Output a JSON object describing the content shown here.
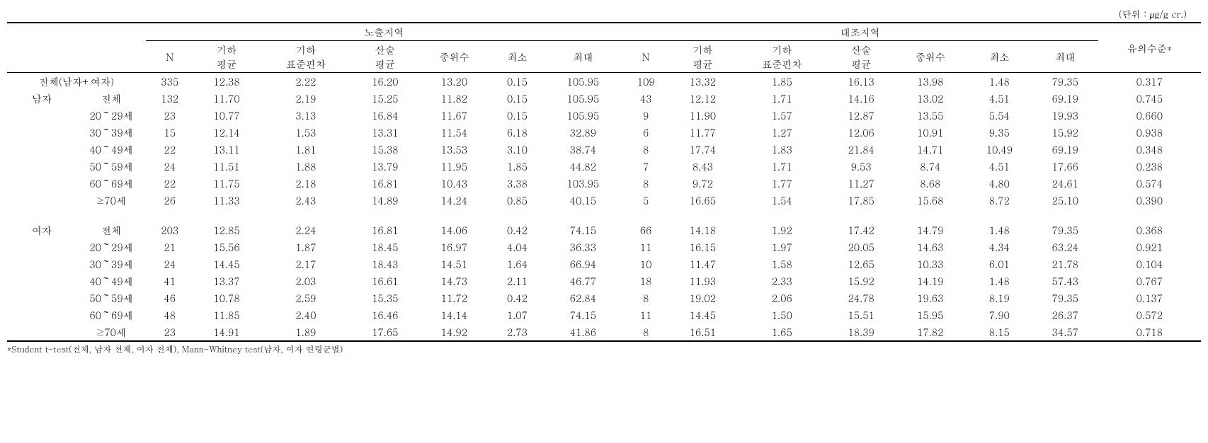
{
  "unit_label": "(단위 : ㎍/g cr.)",
  "headers": {
    "group1": "노출지역",
    "group2": "대조지역",
    "n": "N",
    "gmean": "기하\n평균",
    "gsd": "기하\n표준편차",
    "amean": "산술\n평균",
    "median": "중위수",
    "min": "최소",
    "max": "최대",
    "sig": "유의수준*"
  },
  "rows": [
    {
      "l1": "전체(남자+여자)",
      "l2": "",
      "g1": [
        "335",
        "12.38",
        "2.22",
        "16.20",
        "13.20",
        "0.15",
        "105.95"
      ],
      "g2": [
        "109",
        "13.32",
        "1.85",
        "16.13",
        "13.98",
        "1.48",
        "79.35"
      ],
      "sig": "0.317"
    },
    {
      "l1": "남자",
      "l2": "전체",
      "g1": [
        "132",
        "11.70",
        "2.19",
        "15.25",
        "11.82",
        "0.15",
        "105.95"
      ],
      "g2": [
        "43",
        "12.12",
        "1.71",
        "14.16",
        "13.02",
        "4.51",
        "69.19"
      ],
      "sig": "0.745"
    },
    {
      "l1": "",
      "l2": "20～29세",
      "g1": [
        "23",
        "10.77",
        "3.13",
        "16.84",
        "11.67",
        "0.15",
        "105.95"
      ],
      "g2": [
        "9",
        "11.90",
        "1.57",
        "12.87",
        "13.55",
        "5.54",
        "19.93"
      ],
      "sig": "0.660"
    },
    {
      "l1": "",
      "l2": "30～39세",
      "g1": [
        "15",
        "12.14",
        "1.53",
        "13.31",
        "11.54",
        "6.18",
        "32.89"
      ],
      "g2": [
        "6",
        "11.77",
        "1.27",
        "12.06",
        "10.91",
        "9.35",
        "15.92"
      ],
      "sig": "0.938"
    },
    {
      "l1": "",
      "l2": "40～49세",
      "g1": [
        "22",
        "13.11",
        "1.81",
        "15.38",
        "13.53",
        "3.10",
        "38.74"
      ],
      "g2": [
        "8",
        "17.74",
        "1.83",
        "21.84",
        "14.71",
        "10.49",
        "69.19"
      ],
      "sig": "0.348"
    },
    {
      "l1": "",
      "l2": "50～59세",
      "g1": [
        "24",
        "11.51",
        "1.88",
        "13.79",
        "11.95",
        "1.85",
        "44.82"
      ],
      "g2": [
        "7",
        "8.43",
        "1.71",
        "9.53",
        "8.74",
        "4.51",
        "17.66"
      ],
      "sig": "0.238"
    },
    {
      "l1": "",
      "l2": "60～69세",
      "g1": [
        "22",
        "11.75",
        "2.18",
        "16.81",
        "10.43",
        "3.38",
        "103.95"
      ],
      "g2": [
        "8",
        "9.72",
        "1.77",
        "11.27",
        "8.68",
        "4.80",
        "24.61"
      ],
      "sig": "0.574"
    },
    {
      "l1": "",
      "l2": "≥70세",
      "g1": [
        "26",
        "11.33",
        "2.43",
        "14.89",
        "14.24",
        "0.85",
        "40.15"
      ],
      "g2": [
        "5",
        "16.65",
        "1.54",
        "17.85",
        "15.68",
        "8.72",
        "25.10"
      ],
      "sig": "0.390"
    },
    {
      "spacer": true
    },
    {
      "l1": "여자",
      "l2": "전체",
      "g1": [
        "203",
        "12.85",
        "2.24",
        "16.81",
        "14.06",
        "0.42",
        "74.15"
      ],
      "g2": [
        "66",
        "14.18",
        "1.92",
        "17.42",
        "14.79",
        "1.48",
        "79.35"
      ],
      "sig": "0.368"
    },
    {
      "l1": "",
      "l2": "20～29세",
      "g1": [
        "21",
        "15.56",
        "1.87",
        "18.45",
        "16.97",
        "4.04",
        "36.33"
      ],
      "g2": [
        "11",
        "16.15",
        "1.97",
        "20.05",
        "14.63",
        "4.34",
        "63.24"
      ],
      "sig": "0.921"
    },
    {
      "l1": "",
      "l2": "30～39세",
      "g1": [
        "24",
        "14.45",
        "2.17",
        "18.43",
        "14.51",
        "1.64",
        "66.94"
      ],
      "g2": [
        "10",
        "11.47",
        "1.58",
        "12.65",
        "10.33",
        "6.01",
        "21.78"
      ],
      "sig": "0.104"
    },
    {
      "l1": "",
      "l2": "40～49세",
      "g1": [
        "41",
        "13.37",
        "2.03",
        "16.61",
        "14.73",
        "2.11",
        "46.77"
      ],
      "g2": [
        "18",
        "11.93",
        "2.33",
        "15.92",
        "14.19",
        "1.48",
        "57.43"
      ],
      "sig": "0.767"
    },
    {
      "l1": "",
      "l2": "50～59세",
      "g1": [
        "46",
        "10.78",
        "2.59",
        "15.35",
        "11.72",
        "0.42",
        "62.84"
      ],
      "g2": [
        "8",
        "19.02",
        "2.06",
        "24.78",
        "19.63",
        "8.19",
        "79.35"
      ],
      "sig": "0.137"
    },
    {
      "l1": "",
      "l2": "60～69세",
      "g1": [
        "48",
        "11.85",
        "2.40",
        "16.46",
        "14.14",
        "1.07",
        "74.15"
      ],
      "g2": [
        "11",
        "14.45",
        "1.50",
        "15.51",
        "15.95",
        "7.90",
        "26.37"
      ],
      "sig": "0.572"
    },
    {
      "l1": "",
      "l2": "≥70세",
      "g1": [
        "23",
        "14.91",
        "1.89",
        "17.65",
        "14.92",
        "2.73",
        "41.86"
      ],
      "g2": [
        "8",
        "16.51",
        "1.65",
        "18.39",
        "17.82",
        "8.15",
        "34.57"
      ],
      "sig": "0.718"
    }
  ],
  "footnote": "*Student t-test(전체, 남자 전체, 여자 전체), Mann-Whitney test(남자, 여자 연령군별)"
}
